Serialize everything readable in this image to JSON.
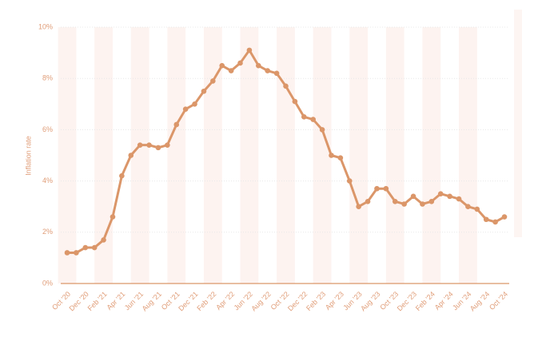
{
  "chart_data": {
    "type": "line",
    "y_label": "Inflation rate",
    "categories": [
      "Oct '20",
      null,
      "Dec '20",
      null,
      "Feb '21",
      null,
      "Apr '21",
      null,
      "Jun '21",
      null,
      "Aug '21",
      null,
      "Oct '21",
      null,
      "Dec '21",
      null,
      "Feb '22",
      null,
      "Apr '22",
      null,
      "Jun '22",
      null,
      "Aug '22",
      null,
      "Oct '22",
      null,
      "Dec '22",
      null,
      "Feb '23",
      null,
      "Apr '23",
      null,
      "Jun '23",
      null,
      "Aug '23",
      null,
      "Oct '23",
      null,
      "Dec '23",
      null,
      "Feb '24",
      null,
      "Apr '24",
      null,
      "Jun '24",
      null,
      "Aug '24",
      null,
      "Oct '24"
    ],
    "values": [
      1.2,
      1.2,
      1.4,
      1.4,
      1.7,
      2.6,
      4.2,
      5.0,
      5.4,
      5.4,
      5.3,
      5.4,
      6.2,
      6.8,
      7.0,
      7.5,
      7.9,
      8.5,
      8.3,
      8.6,
      9.1,
      8.5,
      8.3,
      8.2,
      7.7,
      7.1,
      6.5,
      6.4,
      6.0,
      5.0,
      4.9,
      4.0,
      3.0,
      3.2,
      3.7,
      3.7,
      3.2,
      3.1,
      3.4,
      3.1,
      3.2,
      3.5,
      3.4,
      3.3,
      3.0,
      2.9,
      2.5,
      2.4,
      2.6
    ],
    "color": "#db9669",
    "ylim": [
      0,
      10
    ],
    "yticks": [
      {
        "value": 0,
        "label": "0%"
      },
      {
        "value": 2,
        "label": "2%"
      },
      {
        "value": 4,
        "label": "4%"
      },
      {
        "value": 6,
        "label": "6%"
      },
      {
        "value": 8,
        "label": "8%"
      },
      {
        "value": 10,
        "label": "10%"
      }
    ],
    "grid": true
  }
}
